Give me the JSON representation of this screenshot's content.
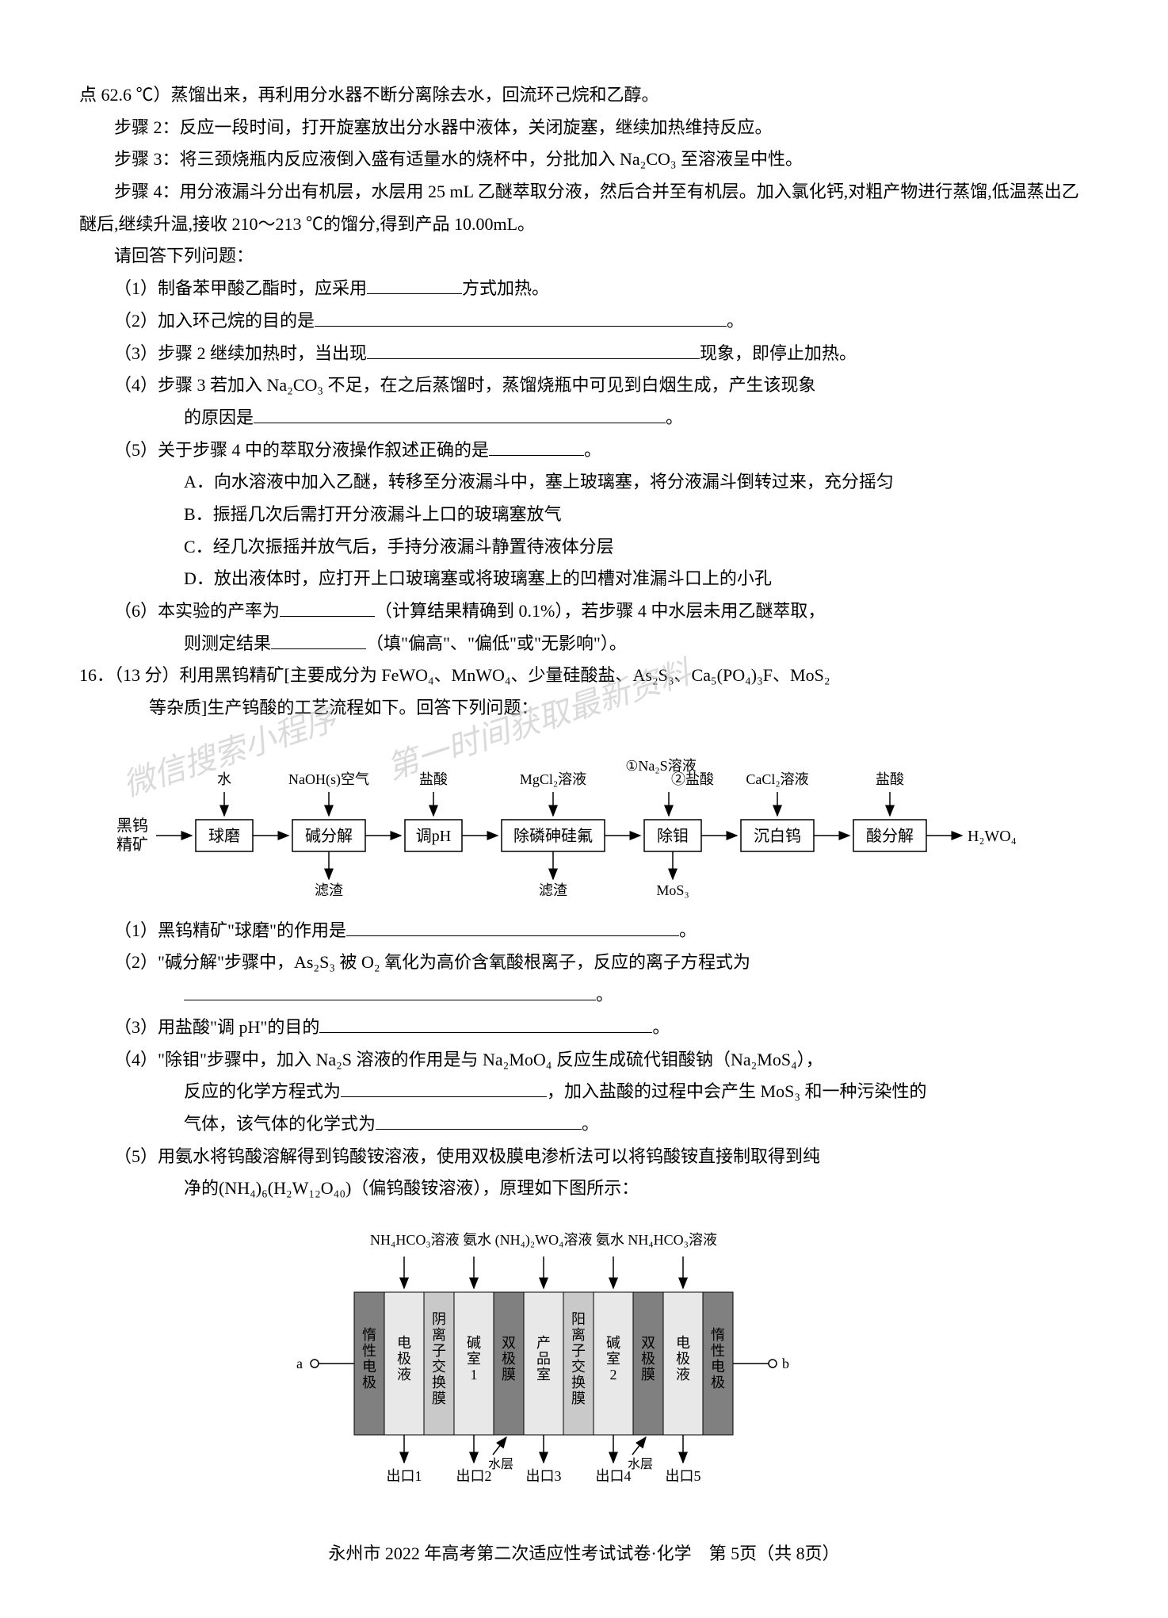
{
  "intro": {
    "line0": "点 62.6 ℃）蒸馏出来，再利用分水器不断分离除去水，回流环己烷和乙醇。",
    "step2": "步骤 2：反应一段时间，打开旋塞放出分水器中液体，关闭旋塞，继续加热维持反应。",
    "step3": "步骤 3：将三颈烧瓶内反应液倒入盛有适量水的烧杯中，分批加入 Na₂CO₃ 至溶液呈中性。",
    "step4": "步骤 4：用分液漏斗分出有机层，水层用 25 mL 乙醚萃取分液，然后合并至有机层。加入氯化钙,对粗产物进行蒸馏,低温蒸出乙醚后,继续升温,接收 210～213 ℃的馏分,得到产品 10.00mL。",
    "answerPrompt": "请回答下列问题："
  },
  "q": {
    "q1a": "（1）制备苯甲酸乙酯时，应采用",
    "q1b": "方式加热。",
    "q2a": "（2）加入环己烷的目的是",
    "q2b": "。",
    "q3a": "（3）步骤 2 继续加热时，当出现",
    "q3b": "现象，即停止加热。",
    "q4a": "（4）步骤 3 若加入 Na₂CO₃ 不足，在之后蒸馏时，蒸馏烧瓶中可见到白烟生成，产生该现象",
    "q4b": "的原因是",
    "q4c": "。",
    "q5a": "（5）关于步骤 4 中的萃取分液操作叙述正确的是",
    "q5b": "。",
    "optA": "A．向水溶液中加入乙醚，转移至分液漏斗中，塞上玻璃塞，将分液漏斗倒转过来，充分摇匀",
    "optB": "B．振摇几次后需打开分液漏斗上口的玻璃塞放气",
    "optC": "C．经几次振摇并放气后，手持分液漏斗静置待液体分层",
    "optD": "D．放出液体时，应打开上口玻璃塞或将玻璃塞上的凹槽对准漏斗口上的小孔",
    "q6a": "（6）本实验的产率为",
    "q6b": "（计算结果精确到 0.1%），若步骤 4 中水层未用乙醚萃取，",
    "q6c": "则测定结果",
    "q6d": "（填\"偏高\"、\"偏低\"或\"无影响\"）。"
  },
  "q16": {
    "head": "16．（13 分）利用黑钨精矿[主要成分为 FeWO₄、MnWO₄、少量硅酸盐、As₂S₃、Ca₅(PO₄)₃F、MoS₂",
    "head2": "等杂质]生产钨酸的工艺流程如下。回答下列问题：",
    "sub1a": "（1）黑钨精矿\"球磨\"的作用是",
    "sub1b": "。",
    "sub2a": "（2）\"碱分解\"步骤中，As₂S₃ 被 O₂ 氧化为高价含氧酸根离子，反应的离子方程式为",
    "sub2b": "。",
    "sub3a": "（3）用盐酸\"调 pH\"的目的",
    "sub3b": "。",
    "sub4a": "（4）\"除钼\"步骤中，加入 Na₂S 溶液的作用是与 Na₂MoO₄ 反应生成硫代钼酸钠（Na₂MoS₄），",
    "sub4b": "反应的化学方程式为",
    "sub4c": "，加入盐酸的过程中会产生 MoS₃ 和一种污染性的",
    "sub4d": "气体，该气体的化学式为",
    "sub4e": "。",
    "sub5a": "（5）用氨水将钨酸溶解得到钨酸铵溶液，使用双极膜电渗析法可以将钨酸铵直接制取得到纯",
    "sub5b": "净的(NH₄)₆(H₂W₁₂O₄₀)（偏钨酸铵溶液），原理如下图所示："
  },
  "flow1": {
    "start": "黑钨精矿",
    "boxes": [
      "球磨",
      "碱分解",
      "调pH",
      "除磷砷硅氟",
      "除钼",
      "沉白钨",
      "酸分解"
    ],
    "topLabels": [
      "水",
      "NaOH(s)空气",
      "盐酸",
      "MgCl₂溶液",
      "①Na₂S溶液",
      "②盐酸",
      "CaCl₂溶液",
      "盐酸"
    ],
    "bottomLabels": [
      "滤渣",
      "滤渣",
      "MoS₃"
    ],
    "end": "H₂WO₄",
    "boxFill": "#ffffff",
    "boxStroke": "#000000",
    "arrowStroke": "#000000",
    "fontSize": 20
  },
  "flow2": {
    "topLabels": [
      "NH₄HCO₃溶液",
      "氨水",
      "(NH₄)₂WO₄溶液",
      "氨水",
      "NH₄HCO₃溶液"
    ],
    "colLabels": [
      "惰性电极",
      "电极液",
      "阴离子交换膜",
      "碱室1",
      "双极膜",
      "产品室",
      "阳离子交换膜",
      "碱室2",
      "双极膜",
      "电极液",
      "惰性电极"
    ],
    "bottomLabels": [
      "出口1",
      "出口2",
      "出口3",
      "出口4",
      "出口5"
    ],
    "waterLabel": "水层",
    "a": "a",
    "b": "b",
    "fillDark": "#808080",
    "fillLight": "#c9c9c9",
    "fillPale": "#e8e8e8",
    "stroke": "#000000",
    "fontSize": 18
  },
  "watermarks": {
    "w1": "微信搜索小程序",
    "w2": "第一时间获取最新资料"
  },
  "footer": "永州市 2022 年高考第二次适应性考试试卷·化学　第 5页（共 8页）"
}
